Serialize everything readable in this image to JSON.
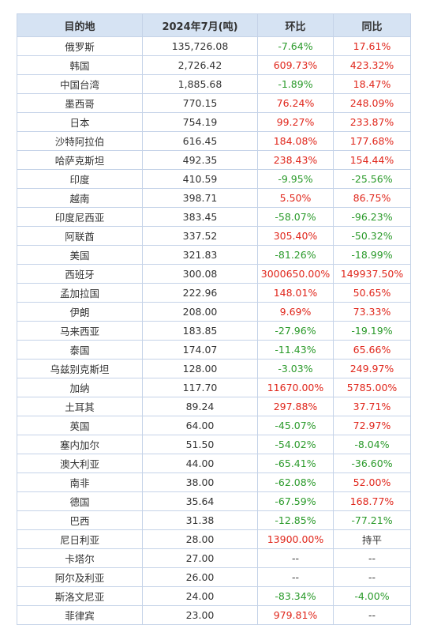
{
  "table": {
    "headers": [
      "目的地",
      "2024年7月(吨)",
      "环比",
      "同比"
    ],
    "rows": [
      [
        "俄罗斯",
        "135,726.08",
        "-7.64%",
        "17.61%"
      ],
      [
        "韩国",
        "2,726.42",
        "609.73%",
        "423.32%"
      ],
      [
        "中国台湾",
        "1,885.68",
        "-1.89%",
        "18.47%"
      ],
      [
        "墨西哥",
        "770.15",
        "76.24%",
        "248.09%"
      ],
      [
        "日本",
        "754.19",
        "99.27%",
        "233.87%"
      ],
      [
        "沙特阿拉伯",
        "616.45",
        "184.08%",
        "177.68%"
      ],
      [
        "哈萨克斯坦",
        "492.35",
        "238.43%",
        "154.44%"
      ],
      [
        "印度",
        "410.59",
        "-9.95%",
        "-25.56%"
      ],
      [
        "越南",
        "398.71",
        "5.50%",
        "86.75%"
      ],
      [
        "印度尼西亚",
        "383.45",
        "-58.07%",
        "-96.23%"
      ],
      [
        "阿联酋",
        "337.52",
        "305.40%",
        "-50.32%"
      ],
      [
        "美国",
        "321.83",
        "-81.26%",
        "-18.99%"
      ],
      [
        "西班牙",
        "300.08",
        "3000650.00%",
        "149937.50%"
      ],
      [
        "孟加拉国",
        "222.96",
        "148.01%",
        "50.65%"
      ],
      [
        "伊朗",
        "208.00",
        "9.69%",
        "73.33%"
      ],
      [
        "马来西亚",
        "183.85",
        "-27.96%",
        "-19.19%"
      ],
      [
        "泰国",
        "174.07",
        "-11.43%",
        "65.66%"
      ],
      [
        "乌兹别克斯坦",
        "128.00",
        "-3.03%",
        "249.97%"
      ],
      [
        "加纳",
        "117.70",
        "11670.00%",
        "5785.00%"
      ],
      [
        "土耳其",
        "89.24",
        "297.88%",
        "37.71%"
      ],
      [
        "英国",
        "64.00",
        "-45.07%",
        "72.97%"
      ],
      [
        "塞内加尔",
        "51.50",
        "-54.02%",
        "-8.04%"
      ],
      [
        "澳大利亚",
        "44.00",
        "-65.41%",
        "-36.60%"
      ],
      [
        "南非",
        "38.00",
        "-62.08%",
        "52.00%"
      ],
      [
        "德国",
        "35.64",
        "-67.59%",
        "168.77%"
      ],
      [
        "巴西",
        "31.38",
        "-12.85%",
        "-77.21%"
      ],
      [
        "尼日利亚",
        "28.00",
        "13900.00%",
        "持平"
      ],
      [
        "卡塔尔",
        "27.00",
        "--",
        "--"
      ],
      [
        "阿尔及利亚",
        "26.00",
        "--",
        "--"
      ],
      [
        "斯洛文尼亚",
        "24.00",
        "-83.34%",
        "-4.00%"
      ],
      [
        "菲律宾",
        "23.00",
        "979.81%",
        "--"
      ]
    ]
  },
  "colors": {
    "header_bg": "#d6e3f3",
    "border": "#c5d3e8",
    "increase": "#e0261b",
    "decrease": "#2a9a2a",
    "neutral": "#333333"
  }
}
